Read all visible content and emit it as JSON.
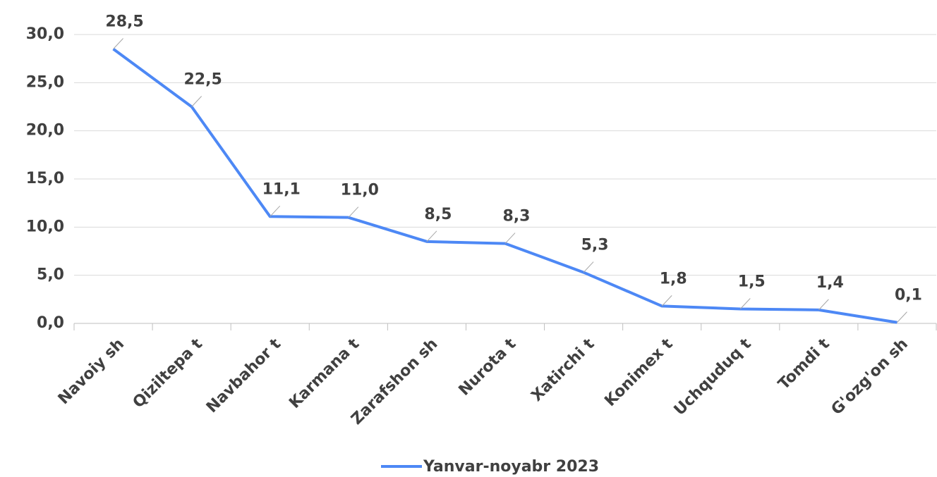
{
  "chart_data": {
    "type": "line",
    "categories": [
      "Navoiy sh",
      "Qiziltepa t",
      "Navbahor t",
      "Karmana t",
      "Zarafshon sh",
      "Nurota t",
      "Xatirchi t",
      "Konimex t",
      "Uchquduq t",
      "Tomdi t",
      "G'ozg'on sh"
    ],
    "series": [
      {
        "name": "Yanvar-noyabr 2023",
        "color": "#4d88f5",
        "values": [
          28.5,
          22.5,
          11.1,
          11.0,
          8.5,
          8.3,
          5.3,
          1.8,
          1.5,
          1.4,
          0.1
        ],
        "value_labels": [
          "28,5",
          "22,5",
          "11,1",
          "11,0",
          "8,5",
          "8,3",
          "5,3",
          "1,8",
          "1,5",
          "1,4",
          "0,1"
        ]
      }
    ],
    "ylim": [
      0,
      30
    ],
    "yticks": [
      {
        "value": 0,
        "label": "0,0"
      },
      {
        "value": 5,
        "label": "5,0"
      },
      {
        "value": 10,
        "label": "10,0"
      },
      {
        "value": 15,
        "label": "15,0"
      },
      {
        "value": 20,
        "label": "20,0"
      },
      {
        "value": 25,
        "label": "25,0"
      },
      {
        "value": 30,
        "label": "30,0"
      }
    ],
    "grid": true,
    "legend": "bottom"
  }
}
